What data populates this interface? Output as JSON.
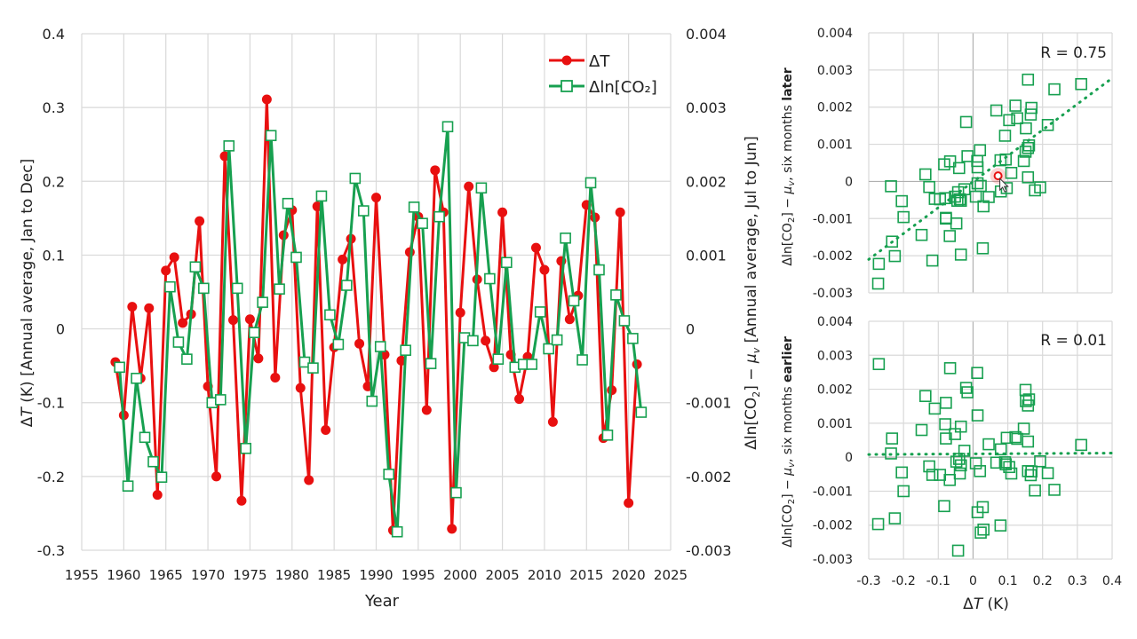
{
  "chart_data": [
    {
      "type": "line",
      "id": "timeseries",
      "xlabel": "Year",
      "ylabel_left": "ΔT (K) [Annual average, Jan to Dec]",
      "ylabel_left_parts": {
        "pre": "Δ",
        "italic": "T",
        "post": " (K) [Annual average, Jan to Dec]"
      },
      "ylabel_right_parts": {
        "pre": "Δln[CO",
        "sub": "2",
        "mid": "] − ",
        "mu": "μ",
        "musub": "v",
        "post": " [Annual average, Jul to Jun]"
      },
      "xlim": [
        1955,
        2025
      ],
      "xticks": [
        "1955",
        "1960",
        "1965",
        "1970",
        "1975",
        "1980",
        "1985",
        "1990",
        "1995",
        "2000",
        "2005",
        "2010",
        "2015",
        "2020",
        "2025"
      ],
      "ylim_left": [
        -0.3,
        0.4
      ],
      "yticks_left": [
        "0.4",
        "0.3",
        "0.2",
        "0.1",
        "0",
        "-0.1",
        "-0.2",
        "-0.3"
      ],
      "ylim_right": [
        -0.003,
        0.004
      ],
      "yticks_right": [
        "0.004",
        "0.003",
        "0.002",
        "0.001",
        "0",
        "-0.001",
        "-0.002",
        "-0.003"
      ],
      "grid": true,
      "legend": {
        "position": "top-right",
        "entries": [
          "ΔT",
          "Δln[CO₂]"
        ]
      },
      "series": [
        {
          "name": "ΔT",
          "axis": "left",
          "color": "#e81010",
          "marker": "circle",
          "x": [
            1959,
            1960,
            1961,
            1962,
            1963,
            1964,
            1965,
            1966,
            1967,
            1968,
            1969,
            1970,
            1971,
            1972,
            1973,
            1974,
            1975,
            1976,
            1977,
            1978,
            1979,
            1980,
            1981,
            1982,
            1983,
            1984,
            1985,
            1986,
            1987,
            1988,
            1989,
            1990,
            1991,
            1992,
            1993,
            1994,
            1995,
            1996,
            1997,
            1998,
            1999,
            2000,
            2001,
            2002,
            2003,
            2004,
            2005,
            2006,
            2007,
            2008,
            2009,
            2010,
            2011,
            2012,
            2013,
            2014,
            2015,
            2016,
            2017,
            2018,
            2019,
            2020,
            2021
          ],
          "values": [
            -0.045,
            -0.117,
            0.03,
            -0.067,
            0.028,
            -0.225,
            0.079,
            0.097,
            0.008,
            0.02,
            0.146,
            -0.078,
            -0.2,
            0.234,
            0.012,
            -0.233,
            0.013,
            -0.04,
            0.311,
            -0.066,
            0.127,
            0.161,
            -0.08,
            -0.205,
            0.166,
            -0.137,
            -0.025,
            0.094,
            0.122,
            -0.02,
            -0.078,
            0.178,
            -0.035,
            -0.273,
            -0.043,
            0.104,
            0.152,
            -0.11,
            0.215,
            0.158,
            -0.271,
            0.022,
            0.193,
            0.067,
            -0.016,
            -0.052,
            0.158,
            -0.035,
            -0.095,
            -0.038,
            0.11,
            0.08,
            -0.126,
            0.092,
            0.013,
            0.045,
            0.168,
            0.151,
            -0.148,
            -0.083,
            0.158,
            -0.236,
            -0.048
          ]
        },
        {
          "name": "Δln[CO₂]",
          "axis": "right",
          "color": "#17a050",
          "marker": "square-open",
          "x": [
            1959.5,
            1960.5,
            1961.5,
            1962.5,
            1963.5,
            1964.5,
            1965.5,
            1966.5,
            1967.5,
            1968.5,
            1969.5,
            1970.5,
            1971.5,
            1972.5,
            1973.5,
            1974.5,
            1975.5,
            1976.5,
            1977.5,
            1978.5,
            1979.5,
            1980.5,
            1981.5,
            1982.5,
            1983.5,
            1984.5,
            1985.5,
            1986.5,
            1987.5,
            1988.5,
            1989.5,
            1990.5,
            1991.5,
            1992.5,
            1993.5,
            1994.5,
            1995.5,
            1996.5,
            1997.5,
            1998.5,
            1999.5,
            2000.5,
            2001.5,
            2002.5,
            2003.5,
            2004.5,
            2005.5,
            2006.5,
            2007.5,
            2008.5,
            2009.5,
            2010.5,
            2011.5,
            2012.5,
            2013.5,
            2014.5,
            2015.5,
            2016.5,
            2017.5,
            2018.5,
            2019.5,
            2020.5,
            2021.5
          ],
          "values": [
            -0.00052,
            -0.00213,
            -0.00067,
            -0.00147,
            -0.0018,
            -0.00201,
            0.00057,
            -0.00018,
            -0.00041,
            0.00084,
            0.00055,
            -0.001,
            -0.00096,
            0.00248,
            0.00055,
            -0.00162,
            -5e-05,
            0.00036,
            0.00262,
            0.00054,
            0.0017,
            0.00097,
            -0.00045,
            -0.00053,
            0.0018,
            0.00019,
            -0.00021,
            0.00059,
            0.00204,
            0.0016,
            -0.00098,
            -0.00024,
            -0.00197,
            -0.00275,
            -0.00029,
            0.00165,
            0.00143,
            -0.00047,
            0.00152,
            0.00274,
            -0.00222,
            -0.00012,
            -0.00016,
            0.00191,
            0.00068,
            -0.00041,
            0.0009,
            -0.00052,
            -0.00048,
            -0.00048,
            0.00023,
            -0.00027,
            -0.00015,
            0.00123,
            0.00038,
            -0.00042,
            0.00198,
            0.0008,
            -0.00144,
            0.00046,
            0.00011,
            -0.00013,
            -0.00113
          ]
        }
      ]
    },
    {
      "type": "scatter",
      "id": "scatter-later",
      "xlabel": "",
      "ylabel_parts": {
        "pre": "Δln[CO",
        "sub": "2",
        "mid": "] − ",
        "mu": "μ",
        "musub": "v",
        "post": ", six months ",
        "bold": "later"
      },
      "xlim": [
        -0.3,
        0.4
      ],
      "ylim": [
        -0.003,
        0.004
      ],
      "yticks": [
        "0.004",
        "0.003",
        "0.002",
        "0.001",
        "0",
        "-0.001",
        "-0.002",
        "-0.003"
      ],
      "annotation": "R = 0.75",
      "pairing": "ΔT[year] vs Δln[CO₂][year+0.5]",
      "trendline": {
        "style": "dotted",
        "x": [
          -0.3,
          0.4
        ],
        "y": [
          -0.0021,
          0.00278
        ]
      },
      "highlight_point": {
        "x": 0.072,
        "y": 0.00015,
        "color": "#e81010"
      }
    },
    {
      "type": "scatter",
      "id": "scatter-earlier",
      "xlabel": "ΔT (K)",
      "xlabel_parts": {
        "pre": "Δ",
        "italic": "T",
        "post": " (K)"
      },
      "ylabel_parts": {
        "pre": "Δln[CO",
        "sub": "2",
        "mid": "] − ",
        "mu": "μ",
        "musub": "v",
        "post": ", six months ",
        "bold": "earlier"
      },
      "xlim": [
        -0.3,
        0.4
      ],
      "xticks": [
        "-0.3",
        "-0.2",
        "-0.1",
        "0",
        "0.1",
        "0.2",
        "0.3",
        "0.4"
      ],
      "ylim": [
        -0.003,
        0.004
      ],
      "yticks": [
        "0.004",
        "0.003",
        "0.002",
        "0.001",
        "0",
        "-0.001",
        "-0.002",
        "-0.003"
      ],
      "annotation": "R = 0.01",
      "pairing": "ΔT[year] vs Δln[CO₂][year-0.5]",
      "trendline": {
        "style": "dotted",
        "x": [
          -0.3,
          0.4
        ],
        "y": [
          8e-05,
          0.00012
        ]
      }
    }
  ]
}
